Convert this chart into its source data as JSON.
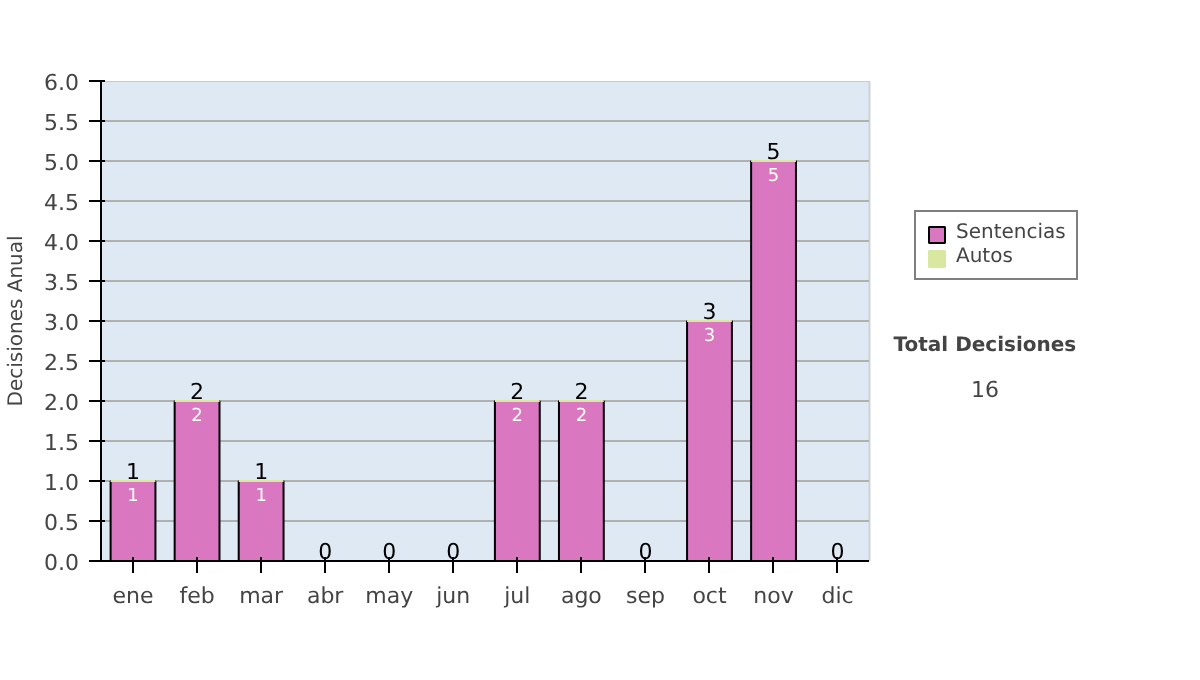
{
  "chart_data": {
    "type": "bar",
    "stacked": true,
    "ylabel": "Decisiones Anual",
    "categories": [
      "ene",
      "feb",
      "mar",
      "abr",
      "may",
      "jun",
      "jul",
      "ago",
      "sep",
      "oct",
      "nov",
      "dic"
    ],
    "series": [
      {
        "name": "Sentencias",
        "color": "#d977c0",
        "values": [
          1,
          2,
          1,
          0,
          0,
          0,
          2,
          2,
          0,
          3,
          5,
          0
        ],
        "value_labels": [
          "1",
          "2",
          "1",
          null,
          null,
          null,
          "2",
          "2",
          null,
          "3",
          "5",
          null
        ]
      },
      {
        "name": "Autos",
        "color": "#d8e8a0",
        "values": [
          0,
          0,
          0,
          0,
          0,
          0,
          0,
          0,
          0,
          0,
          0,
          0
        ]
      }
    ],
    "totals": [
      "1",
      "2",
      "1",
      "0",
      "0",
      "0",
      "2",
      "2",
      "0",
      "3",
      "5",
      "0"
    ],
    "ylim": [
      0,
      6
    ],
    "yticks": [
      "0.0",
      "0.5",
      "1.0",
      "1.5",
      "2.0",
      "2.5",
      "3.0",
      "3.5",
      "4.0",
      "4.5",
      "5.0",
      "5.5",
      "6.0"
    ],
    "grid": "y",
    "legend": "right",
    "annotations": [
      "Total Decisiones",
      "16"
    ]
  }
}
